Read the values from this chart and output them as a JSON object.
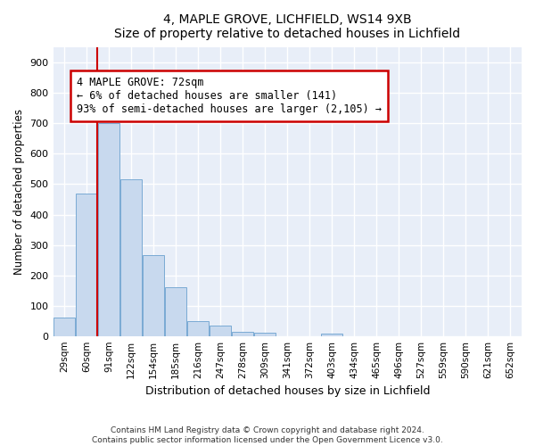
{
  "title1": "4, MAPLE GROVE, LICHFIELD, WS14 9XB",
  "title2": "Size of property relative to detached houses in Lichfield",
  "xlabel": "Distribution of detached houses by size in Lichfield",
  "ylabel": "Number of detached properties",
  "categories": [
    "29sqm",
    "60sqm",
    "91sqm",
    "122sqm",
    "154sqm",
    "185sqm",
    "216sqm",
    "247sqm",
    "278sqm",
    "309sqm",
    "341sqm",
    "372sqm",
    "403sqm",
    "434sqm",
    "465sqm",
    "496sqm",
    "527sqm",
    "559sqm",
    "590sqm",
    "621sqm",
    "652sqm"
  ],
  "values": [
    60,
    470,
    700,
    515,
    265,
    160,
    48,
    35,
    15,
    10,
    0,
    0,
    8,
    0,
    0,
    0,
    0,
    0,
    0,
    0,
    0
  ],
  "bar_color": "#c8d9ee",
  "bar_edge_color": "#7aaad4",
  "annotation_text": "4 MAPLE GROVE: 72sqm\n← 6% of detached houses are smaller (141)\n93% of semi-detached houses are larger (2,105) →",
  "annotation_box_color": "#ffffff",
  "annotation_box_edge_color": "#cc0000",
  "line_color": "#cc0000",
  "footer1": "Contains HM Land Registry data © Crown copyright and database right 2024.",
  "footer2": "Contains public sector information licensed under the Open Government Licence v3.0.",
  "bg_color": "#ffffff",
  "plot_bg_color": "#e8eef8",
  "ylim": [
    0,
    950
  ],
  "yticks": [
    0,
    100,
    200,
    300,
    400,
    500,
    600,
    700,
    800,
    900
  ]
}
